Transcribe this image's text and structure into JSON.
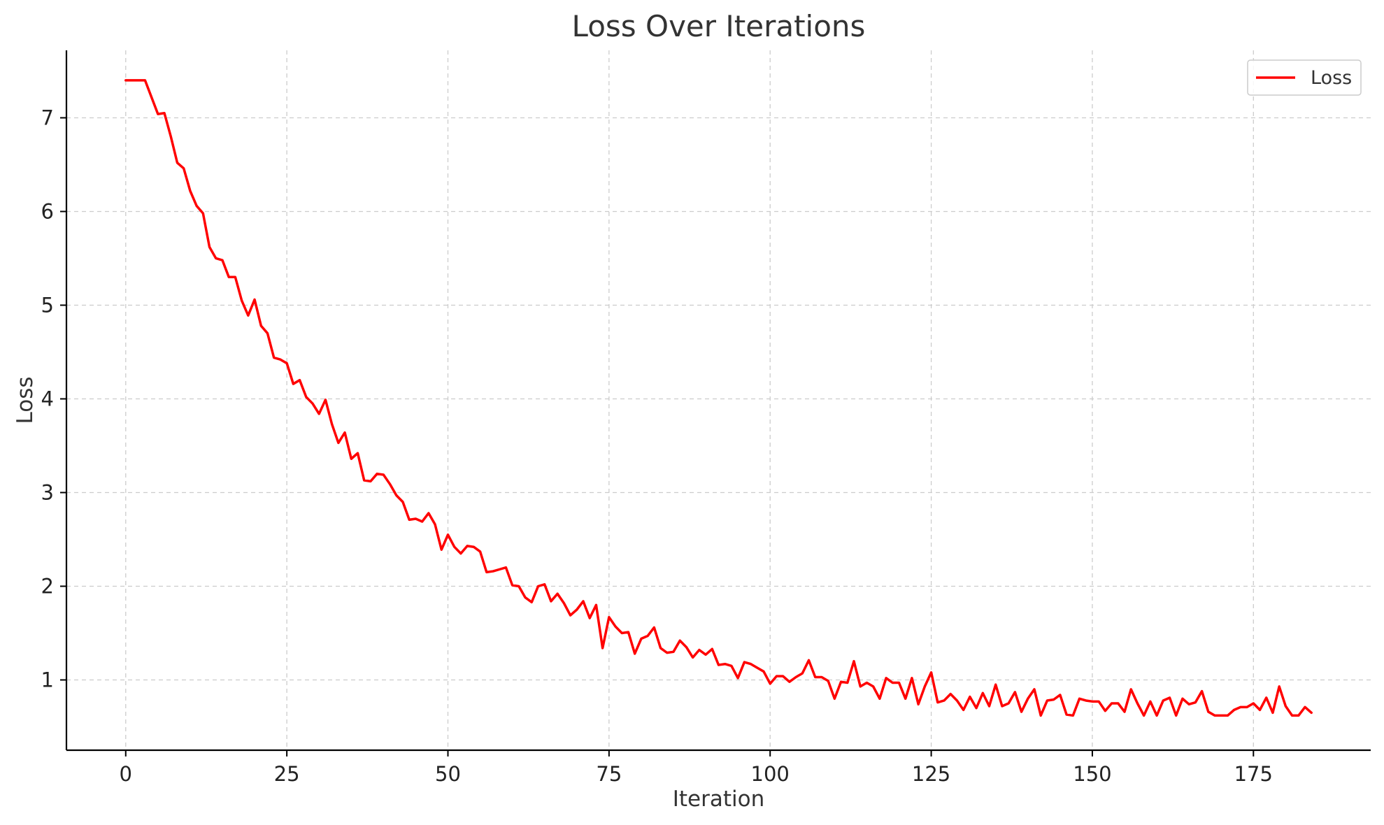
{
  "chart_data": {
    "type": "line",
    "title": "Loss Over Iterations",
    "xlabel": "Iteration",
    "ylabel": "Loss",
    "xlim": [
      -9.2,
      193.2
    ],
    "ylim": [
      0.25,
      7.72
    ],
    "xticks": [
      0,
      25,
      50,
      75,
      100,
      125,
      150,
      175
    ],
    "yticks": [
      1,
      2,
      3,
      4,
      5,
      6,
      7
    ],
    "grid": true,
    "legend": "top-right",
    "series": [
      {
        "name": "Loss",
        "color": "#ff0000",
        "x": [
          0,
          1,
          2,
          3,
          4,
          5,
          6,
          7,
          8,
          9,
          10,
          11,
          12,
          13,
          14,
          15,
          16,
          17,
          18,
          19,
          20,
          21,
          22,
          23,
          24,
          25,
          26,
          27,
          28,
          29,
          30,
          31,
          32,
          33,
          34,
          35,
          36,
          37,
          38,
          39,
          40,
          41,
          42,
          43,
          44,
          45,
          46,
          47,
          48,
          49,
          50,
          51,
          52,
          53,
          54,
          55,
          56,
          57,
          58,
          59,
          60,
          61,
          62,
          63,
          64,
          65,
          66,
          67,
          68,
          69,
          70,
          71,
          72,
          73,
          74,
          75,
          76,
          77,
          78,
          79,
          80,
          81,
          82,
          83,
          84,
          85,
          86,
          87,
          88,
          89,
          90,
          91,
          92,
          93,
          94,
          95,
          96,
          97,
          98,
          99,
          100,
          101,
          102,
          103,
          104,
          105,
          106,
          107,
          108,
          109,
          110,
          111,
          112,
          113,
          114,
          115,
          116,
          117,
          118,
          119,
          120,
          121,
          122,
          123,
          124,
          125,
          126,
          127,
          128,
          129,
          130,
          131,
          132,
          133,
          134,
          135,
          136,
          137,
          138,
          139,
          140,
          141,
          142,
          143,
          144,
          145,
          146,
          147,
          148,
          149,
          150,
          151,
          152,
          153,
          154,
          155,
          156,
          157,
          158,
          159,
          160,
          161,
          162,
          163,
          164,
          165,
          166,
          167,
          168,
          169,
          170,
          171,
          172,
          173,
          174,
          175,
          176,
          177,
          178,
          179,
          180,
          181,
          182,
          183,
          184
        ],
        "y": [
          7.4,
          7.4,
          7.4,
          7.4,
          7.22,
          7.04,
          7.05,
          6.8,
          6.52,
          6.46,
          6.22,
          6.06,
          5.98,
          5.62,
          5.5,
          5.48,
          5.3,
          5.3,
          5.05,
          4.89,
          5.06,
          4.78,
          4.7,
          4.44,
          4.42,
          4.38,
          4.16,
          4.2,
          4.02,
          3.95,
          3.84,
          3.99,
          3.73,
          3.53,
          3.64,
          3.36,
          3.42,
          3.13,
          3.12,
          3.2,
          3.19,
          3.09,
          2.97,
          2.9,
          2.71,
          2.72,
          2.69,
          2.78,
          2.66,
          2.39,
          2.55,
          2.42,
          2.35,
          2.43,
          2.42,
          2.37,
          2.15,
          2.16,
          2.18,
          2.2,
          2.01,
          2.0,
          1.88,
          1.83,
          2.0,
          2.02,
          1.84,
          1.92,
          1.82,
          1.69,
          1.75,
          1.84,
          1.66,
          1.8,
          1.34,
          1.67,
          1.57,
          1.5,
          1.51,
          1.28,
          1.44,
          1.47,
          1.56,
          1.34,
          1.29,
          1.3,
          1.42,
          1.35,
          1.24,
          1.32,
          1.27,
          1.33,
          1.16,
          1.17,
          1.15,
          1.02,
          1.19,
          1.17,
          1.13,
          1.09,
          0.96,
          1.04,
          1.04,
          0.98,
          1.03,
          1.07,
          1.21,
          1.03,
          1.03,
          0.99,
          0.8,
          0.98,
          0.97,
          1.2,
          0.93,
          0.97,
          0.93,
          0.8,
          1.02,
          0.97,
          0.97,
          0.8,
          1.02,
          0.74,
          0.93,
          1.08,
          0.76,
          0.78,
          0.85,
          0.78,
          0.68,
          0.82,
          0.7,
          0.86,
          0.72,
          0.95,
          0.72,
          0.75,
          0.87,
          0.66,
          0.8,
          0.9,
          0.62,
          0.78,
          0.79,
          0.84,
          0.63,
          0.62,
          0.8,
          0.78,
          0.77,
          0.77,
          0.67,
          0.75,
          0.75,
          0.66,
          0.9,
          0.75,
          0.62,
          0.77,
          0.62,
          0.78,
          0.81,
          0.62,
          0.8,
          0.74,
          0.76,
          0.88,
          0.66,
          0.62,
          0.62,
          0.62,
          0.68,
          0.71,
          0.71,
          0.75,
          0.68,
          0.81,
          0.65,
          0.93,
          0.72,
          0.62,
          0.62,
          0.71,
          0.65
        ]
      }
    ]
  }
}
